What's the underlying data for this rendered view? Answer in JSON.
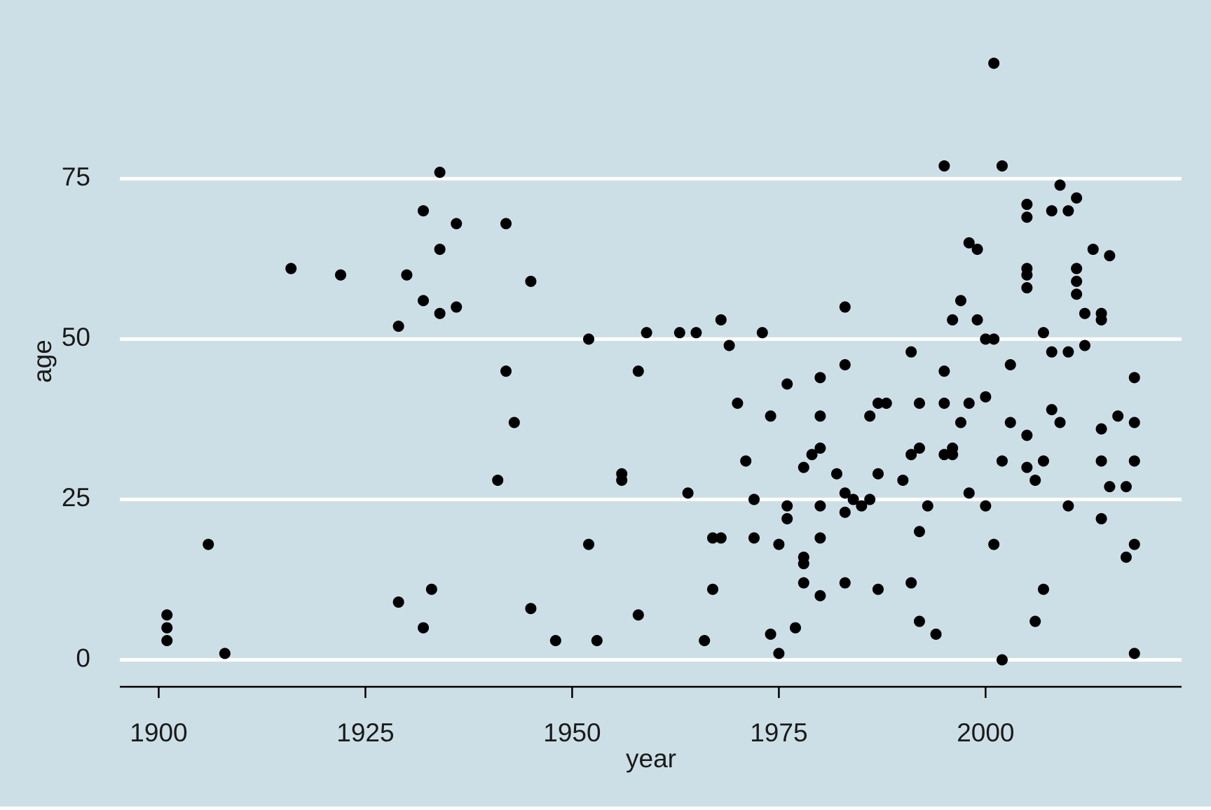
{
  "chart_data": {
    "type": "scatter",
    "x_label": "year",
    "y_label": "age",
    "color": "#000000",
    "background": "#cddfe6",
    "grid": true,
    "x": [
      1901,
      1901,
      1901,
      1906,
      1908,
      1916,
      1922,
      1929,
      1930,
      1929,
      1932,
      1932,
      1932,
      1933,
      1934,
      1934,
      1934,
      1936,
      1936,
      1941,
      1942,
      1942,
      1943,
      1945,
      1945,
      1948,
      1952,
      1952,
      1953,
      1956,
      1956,
      1958,
      1958,
      1959,
      1963,
      1964,
      1965,
      1966,
      1967,
      1967,
      1968,
      1968,
      1969,
      1970,
      1971,
      1972,
      1972,
      1973,
      1974,
      1974,
      1975,
      1975,
      1976,
      1976,
      1976,
      1977,
      1978,
      1978,
      1978,
      1978,
      1979,
      1980,
      1980,
      1980,
      1980,
      1980,
      1980,
      1982,
      1983,
      1983,
      1983,
      1983,
      1983,
      1984,
      1985,
      1986,
      1986,
      1987,
      1987,
      1987,
      1988,
      1990,
      1991,
      1991,
      1991,
      1992,
      1992,
      1992,
      1992,
      1993,
      1994,
      1995,
      1995,
      1995,
      1995,
      1996,
      1996,
      1996,
      1997,
      1997,
      1998,
      1998,
      1998,
      1999,
      1999,
      2000,
      2000,
      2000,
      2001,
      2001,
      2001,
      2002,
      2002,
      2002,
      2003,
      2003,
      2005,
      2005,
      2005,
      2005,
      2005,
      2005,
      2005,
      2006,
      2006,
      2007,
      2007,
      2007,
      2008,
      2008,
      2008,
      2009,
      2009,
      2010,
      2010,
      2010,
      2011,
      2011,
      2011,
      2011,
      2012,
      2012,
      2013,
      2014,
      2014,
      2014,
      2014,
      2014,
      2015,
      2015,
      2016,
      2017,
      2017,
      2018,
      2018,
      2018,
      2018,
      2018
    ],
    "values": [
      7,
      5,
      3,
      18,
      1,
      61,
      60,
      52,
      60,
      9,
      70,
      56,
      5,
      11,
      76,
      64,
      54,
      68,
      55,
      28,
      68,
      45,
      37,
      59,
      8,
      3,
      50,
      18,
      3,
      29,
      28,
      45,
      7,
      51,
      51,
      26,
      51,
      3,
      19,
      11,
      19,
      53,
      49,
      40,
      31,
      25,
      19,
      51,
      38,
      4,
      18,
      1,
      43,
      24,
      22,
      5,
      30,
      16,
      15,
      12,
      32,
      44,
      38,
      33,
      24,
      19,
      10,
      29,
      55,
      46,
      26,
      23,
      12,
      25,
      24,
      38,
      25,
      40,
      29,
      11,
      40,
      28,
      48,
      32,
      12,
      40,
      33,
      20,
      6,
      24,
      4,
      77,
      45,
      40,
      32,
      53,
      33,
      32,
      56,
      37,
      65,
      40,
      26,
      64,
      53,
      50,
      41,
      24,
      93,
      50,
      18,
      77,
      31,
      0,
      46,
      37,
      71,
      69,
      61,
      60,
      58,
      35,
      30,
      28,
      6,
      51,
      31,
      11,
      70,
      48,
      39,
      74,
      37,
      70,
      48,
      24,
      72,
      61,
      59,
      57,
      54,
      49,
      64,
      54,
      53,
      36,
      31,
      22,
      63,
      27,
      38,
      27,
      16,
      44,
      37,
      31,
      18,
      1
    ],
    "xlim": [
      1895.3,
      2023.7
    ],
    "ylim": [
      -4.2,
      95
    ],
    "xticks": [
      1900,
      1925,
      1950,
      1975,
      2000
    ],
    "yticks": [
      0,
      25,
      50,
      75
    ]
  }
}
